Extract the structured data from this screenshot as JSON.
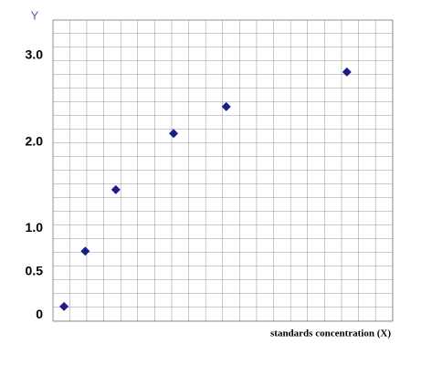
{
  "chart_data": {
    "type": "scatter",
    "y_label": "Y",
    "x_label": "standards concentration (X)",
    "series": [
      {
        "color": "#1c1c8a",
        "x": [
          0.65,
          1.9,
          3.7,
          7.1,
          10.2,
          17.3
        ],
        "values": [
          0.1,
          0.74,
          1.45,
          2.1,
          2.41,
          2.81
        ]
      }
    ],
    "xlim": [
      0,
      20
    ],
    "ylim": [
      -0.07,
      3.41
    ],
    "yticks": [
      {
        "value": 0,
        "label": "0"
      },
      {
        "value": 0.5,
        "label": "0.5"
      },
      {
        "value": 1,
        "label": "1.0"
      },
      {
        "value": 2,
        "label": "2.0"
      },
      {
        "value": 3,
        "label": "3.0"
      }
    ],
    "grid": true
  }
}
